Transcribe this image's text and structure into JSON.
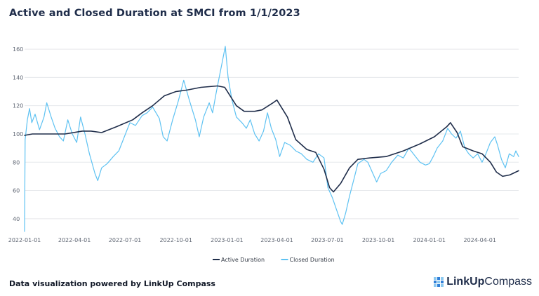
{
  "title": "Active and Closed Duration at SMCI from 1/1/2023",
  "footer": "Data visualization powered by LinkUp Compass",
  "brand": {
    "part1": "LinkUp",
    "part2": "Compass",
    "icon": "linkup-grid-logo"
  },
  "colors": {
    "active": "#1f2d4a",
    "closed": "#5ec2f2",
    "grid": "#e6e8eb",
    "brand_blue": "#2f7fd8",
    "brand_light": "#8cc9f0"
  },
  "chart_data": {
    "type": "line",
    "xlabel": "",
    "ylabel": "",
    "x_ticks": [
      "2022-01-01",
      "2022-04-01",
      "2022-07-01",
      "2022-10-01",
      "2023-01-01",
      "2023-04-01",
      "2023-07-01",
      "2023-10-01",
      "2024-01-01",
      "2024-04-01"
    ],
    "y_ticks": [
      40,
      60,
      80,
      100,
      120,
      140,
      160
    ],
    "xlim": [
      "2022-01-01",
      "2024-06-10"
    ],
    "ylim": [
      30,
      166
    ],
    "grid": true,
    "legend_position": "bottom-center",
    "series": [
      {
        "name": "Active Duration",
        "points": [
          [
            "2022-01-01",
            99
          ],
          [
            "2022-01-15",
            100
          ],
          [
            "2022-02-15",
            100
          ],
          [
            "2022-03-15",
            100
          ],
          [
            "2022-04-15",
            102
          ],
          [
            "2022-05-01",
            102
          ],
          [
            "2022-05-20",
            101
          ],
          [
            "2022-06-15",
            105
          ],
          [
            "2022-07-15",
            110
          ],
          [
            "2022-08-01",
            115
          ],
          [
            "2022-08-20",
            120
          ],
          [
            "2022-09-10",
            127
          ],
          [
            "2022-10-01",
            130
          ],
          [
            "2022-10-20",
            131
          ],
          [
            "2022-11-15",
            133
          ],
          [
            "2022-12-15",
            134
          ],
          [
            "2022-12-28",
            133
          ],
          [
            "2023-01-05",
            128
          ],
          [
            "2023-01-18",
            120
          ],
          [
            "2023-02-01",
            116
          ],
          [
            "2023-02-20",
            116
          ],
          [
            "2023-03-05",
            117
          ],
          [
            "2023-03-25",
            122
          ],
          [
            "2023-04-01",
            124
          ],
          [
            "2023-04-20",
            112
          ],
          [
            "2023-05-05",
            96
          ],
          [
            "2023-05-25",
            89
          ],
          [
            "2023-06-10",
            87
          ],
          [
            "2023-06-25",
            75
          ],
          [
            "2023-07-05",
            62
          ],
          [
            "2023-07-12",
            59
          ],
          [
            "2023-07-25",
            65
          ],
          [
            "2023-08-10",
            76
          ],
          [
            "2023-08-25",
            82
          ],
          [
            "2023-09-15",
            83
          ],
          [
            "2023-10-15",
            84
          ],
          [
            "2023-11-15",
            88
          ],
          [
            "2023-12-15",
            93
          ],
          [
            "2024-01-10",
            98
          ],
          [
            "2024-02-01",
            105
          ],
          [
            "2024-02-08",
            108
          ],
          [
            "2024-02-20",
            101
          ],
          [
            "2024-03-01",
            91
          ],
          [
            "2024-03-20",
            88
          ],
          [
            "2024-04-05",
            86
          ],
          [
            "2024-04-20",
            80
          ],
          [
            "2024-05-01",
            73
          ],
          [
            "2024-05-12",
            70
          ],
          [
            "2024-05-25",
            71
          ],
          [
            "2024-06-10",
            74
          ]
        ]
      },
      {
        "name": "Closed Duration",
        "points": [
          [
            "2022-01-01",
            31
          ],
          [
            "2022-01-02",
            96
          ],
          [
            "2022-01-06",
            110
          ],
          [
            "2022-01-10",
            118
          ],
          [
            "2022-01-14",
            108
          ],
          [
            "2022-01-20",
            114
          ],
          [
            "2022-01-28",
            103
          ],
          [
            "2022-02-05",
            112
          ],
          [
            "2022-02-10",
            122
          ],
          [
            "2022-02-18",
            112
          ],
          [
            "2022-02-25",
            104
          ],
          [
            "2022-03-05",
            98
          ],
          [
            "2022-03-12",
            95
          ],
          [
            "2022-03-20",
            110
          ],
          [
            "2022-03-28",
            100
          ],
          [
            "2022-04-05",
            94
          ],
          [
            "2022-04-12",
            112
          ],
          [
            "2022-04-20",
            100
          ],
          [
            "2022-04-28",
            86
          ],
          [
            "2022-05-08",
            72
          ],
          [
            "2022-05-13",
            67
          ],
          [
            "2022-05-20",
            76
          ],
          [
            "2022-05-30",
            79
          ],
          [
            "2022-06-10",
            84
          ],
          [
            "2022-06-20",
            88
          ],
          [
            "2022-06-30",
            98
          ],
          [
            "2022-07-10",
            108
          ],
          [
            "2022-07-20",
            106
          ],
          [
            "2022-08-01",
            113
          ],
          [
            "2022-08-10",
            115
          ],
          [
            "2022-08-20",
            119
          ],
          [
            "2022-09-01",
            111
          ],
          [
            "2022-09-08",
            98
          ],
          [
            "2022-09-15",
            95
          ],
          [
            "2022-09-25",
            110
          ],
          [
            "2022-10-05",
            123
          ],
          [
            "2022-10-15",
            138
          ],
          [
            "2022-10-25",
            124
          ],
          [
            "2022-11-05",
            110
          ],
          [
            "2022-11-12",
            98
          ],
          [
            "2022-11-20",
            112
          ],
          [
            "2022-11-30",
            122
          ],
          [
            "2022-12-06",
            115
          ],
          [
            "2022-12-12",
            128
          ],
          [
            "2022-12-18",
            140
          ],
          [
            "2022-12-24",
            152
          ],
          [
            "2022-12-29",
            162
          ],
          [
            "2023-01-03",
            140
          ],
          [
            "2023-01-10",
            124
          ],
          [
            "2023-01-18",
            112
          ],
          [
            "2023-01-28",
            108
          ],
          [
            "2023-02-05",
            104
          ],
          [
            "2023-02-12",
            110
          ],
          [
            "2023-02-20",
            100
          ],
          [
            "2023-02-28",
            95
          ],
          [
            "2023-03-08",
            102
          ],
          [
            "2023-03-15",
            115
          ],
          [
            "2023-03-22",
            104
          ],
          [
            "2023-03-30",
            96
          ],
          [
            "2023-04-06",
            84
          ],
          [
            "2023-04-15",
            94
          ],
          [
            "2023-04-25",
            92
          ],
          [
            "2023-05-05",
            88
          ],
          [
            "2023-05-15",
            86
          ],
          [
            "2023-05-25",
            82
          ],
          [
            "2023-06-05",
            80
          ],
          [
            "2023-06-15",
            86
          ],
          [
            "2023-06-25",
            83
          ],
          [
            "2023-07-02",
            62
          ],
          [
            "2023-07-10",
            55
          ],
          [
            "2023-07-18",
            46
          ],
          [
            "2023-07-25",
            38
          ],
          [
            "2023-07-28",
            36
          ],
          [
            "2023-08-03",
            44
          ],
          [
            "2023-08-10",
            56
          ],
          [
            "2023-08-18",
            68
          ],
          [
            "2023-08-25",
            79
          ],
          [
            "2023-09-05",
            82
          ],
          [
            "2023-09-12",
            80
          ],
          [
            "2023-09-20",
            73
          ],
          [
            "2023-09-28",
            66
          ],
          [
            "2023-10-05",
            72
          ],
          [
            "2023-10-15",
            74
          ],
          [
            "2023-10-25",
            80
          ],
          [
            "2023-11-05",
            85
          ],
          [
            "2023-11-15",
            83
          ],
          [
            "2023-11-25",
            90
          ],
          [
            "2023-12-05",
            85
          ],
          [
            "2023-12-15",
            80
          ],
          [
            "2023-12-25",
            78
          ],
          [
            "2024-01-01",
            79
          ],
          [
            "2024-01-08",
            84
          ],
          [
            "2024-01-15",
            90
          ],
          [
            "2024-01-25",
            95
          ],
          [
            "2024-02-03",
            104
          ],
          [
            "2024-02-10",
            100
          ],
          [
            "2024-02-18",
            97
          ],
          [
            "2024-02-26",
            102
          ],
          [
            "2024-03-05",
            90
          ],
          [
            "2024-03-12",
            86
          ],
          [
            "2024-03-20",
            83
          ],
          [
            "2024-03-28",
            86
          ],
          [
            "2024-04-05",
            80
          ],
          [
            "2024-04-12",
            86
          ],
          [
            "2024-04-20",
            94
          ],
          [
            "2024-04-28",
            98
          ],
          [
            "2024-05-03",
            92
          ],
          [
            "2024-05-10",
            82
          ],
          [
            "2024-05-17",
            76
          ],
          [
            "2024-05-24",
            86
          ],
          [
            "2024-06-01",
            84
          ],
          [
            "2024-06-05",
            88
          ],
          [
            "2024-06-10",
            84
          ]
        ]
      }
    ]
  }
}
